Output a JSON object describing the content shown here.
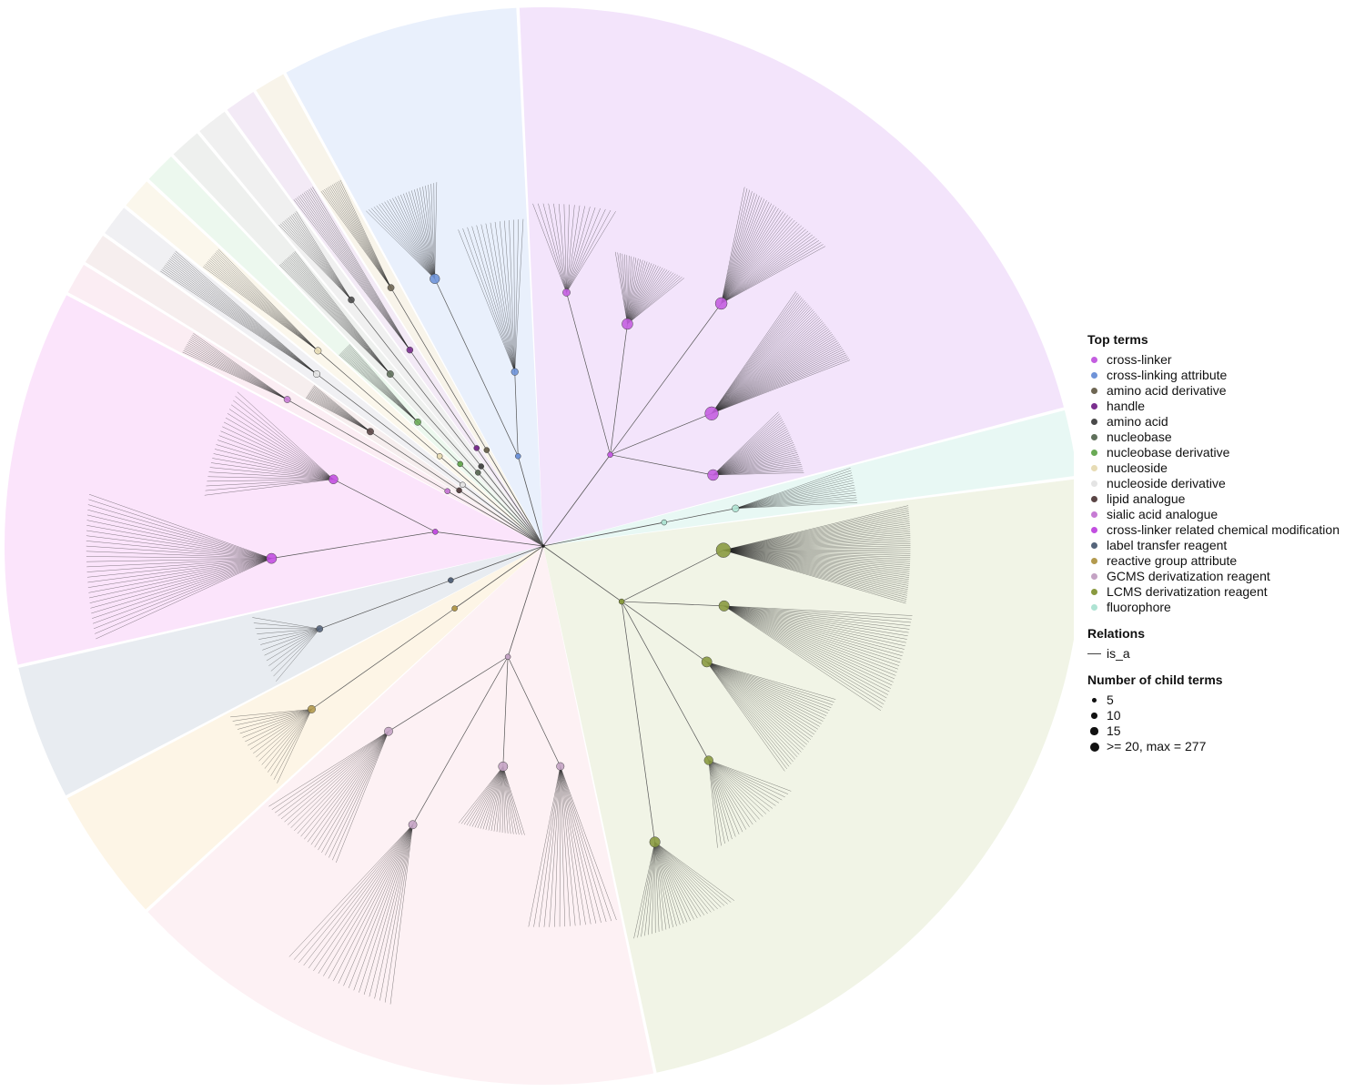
{
  "legend": {
    "top_terms_title": "Top terms",
    "relations_title": "Relations",
    "size_title": "Number of child terms",
    "top_terms": [
      {
        "label": "cross-linker",
        "color": "#c45ee0"
      },
      {
        "label": "cross-linking attribute",
        "color": "#6f93d8"
      },
      {
        "label": "amino acid derivative",
        "color": "#6e6653"
      },
      {
        "label": "handle",
        "color": "#7a2f8e"
      },
      {
        "label": "amino acid",
        "color": "#4a4a4a"
      },
      {
        "label": "nucleobase",
        "color": "#5f705b"
      },
      {
        "label": "nucleobase derivative",
        "color": "#6aaa55"
      },
      {
        "label": "nucleoside",
        "color": "#e7dcb5"
      },
      {
        "label": "nucleoside derivative",
        "color": "#e4e4e4"
      },
      {
        "label": "lipid analogue",
        "color": "#5a4545"
      },
      {
        "label": "sialic acid analogue",
        "color": "#c77bd4"
      },
      {
        "label": "cross-linker related chemical modification",
        "color": "#c24fe0"
      },
      {
        "label": "label transfer reagent",
        "color": "#55647a"
      },
      {
        "label": "reactive group attribute",
        "color": "#b39a4e"
      },
      {
        "label": "GCMS derivatization reagent",
        "color": "#c4a3c4"
      },
      {
        "label": "LCMS derivatization reagent",
        "color": "#8a9a40"
      },
      {
        "label": "fluorophore",
        "color": "#aee3d3"
      }
    ],
    "relations": [
      {
        "label": "is_a",
        "color": "#444444"
      }
    ],
    "sizes": [
      {
        "label": "5",
        "value": 5
      },
      {
        "label": "10",
        "value": 10
      },
      {
        "label": "15",
        "value": 15
      },
      {
        "label": ">= 20, max = 277",
        "value": 20
      }
    ]
  },
  "diagram": {
    "type": "circular ontology tree",
    "sectors": [
      {
        "term": "cross-linker",
        "fill": "#f3e4fb",
        "share": 0.21
      },
      {
        "term": "fluorophore",
        "fill": "#e8f8f4",
        "share": 0.02
      },
      {
        "term": "LCMS derivatization reagent",
        "fill": "#f1f4e6",
        "share": 0.23
      },
      {
        "term": "GCMS derivatization reagent",
        "fill": "#fdf1f4",
        "share": 0.16
      },
      {
        "term": "reactive group attribute",
        "fill": "#fdf5e6",
        "share": 0.04
      },
      {
        "term": "label transfer reagent",
        "fill": "#e8ecf1",
        "share": 0.04
      },
      {
        "term": "cross-linker related chemical modification",
        "fill": "#fbe4fb",
        "share": 0.11
      },
      {
        "term": "sialic acid analogue",
        "fill": "#fbedf3",
        "share": 0.01
      },
      {
        "term": "lipid analogue",
        "fill": "#f6eeee",
        "share": 0.01
      },
      {
        "term": "nucleoside derivative",
        "fill": "#f0f0f3",
        "share": 0.01
      },
      {
        "term": "nucleoside",
        "fill": "#fbf7ec",
        "share": 0.01
      },
      {
        "term": "nucleobase derivative",
        "fill": "#ecf8ee",
        "share": 0.01
      },
      {
        "term": "nucleobase",
        "fill": "#eef0ee",
        "share": 0.01
      },
      {
        "term": "amino acid",
        "fill": "#f0f0f0",
        "share": 0.01
      },
      {
        "term": "handle",
        "fill": "#f3eaf6",
        "share": 0.01
      },
      {
        "term": "amino acid derivative",
        "fill": "#f8f4ea",
        "share": 0.01
      },
      {
        "term": "cross-linking attribute",
        "fill": "#e9f0fc",
        "share": 0.07
      }
    ]
  }
}
